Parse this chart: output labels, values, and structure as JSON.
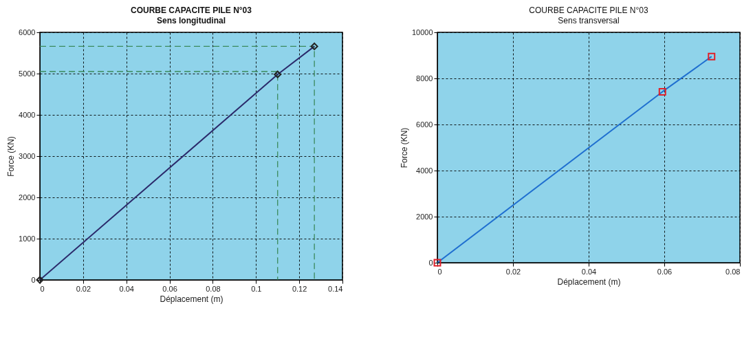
{
  "chart_data": [
    {
      "type": "line",
      "title": "COURBE CAPACITE PILE N°03",
      "subtitle": "Sens longitudinal",
      "xlabel": "Déplacement (m)",
      "ylabel": "Force (KN)",
      "xlim": [
        0,
        0.14
      ],
      "xticks": [
        0,
        0.02,
        0.04,
        0.06,
        0.08,
        0.1,
        0.12,
        0.14
      ],
      "ylim": [
        0,
        6000
      ],
      "yticks": [
        0,
        1000,
        2000,
        3000,
        4000,
        5000,
        6000
      ],
      "grid": true,
      "series": [
        {
          "color": "#3b8a5c",
          "line_style": "dashed",
          "marker": "none",
          "x": [
            0,
            0.127,
            0.127
          ],
          "values": [
            5660,
            5660,
            0
          ]
        },
        {
          "color": "#3b8a5c",
          "line_style": "dashed",
          "marker": "none",
          "x": [
            0,
            0.11,
            0.11
          ],
          "values": [
            5050,
            5050,
            0
          ]
        },
        {
          "color": "#2b2a6b",
          "line_style": "solid",
          "marker": "none",
          "x": [
            0,
            0.11,
            0.127
          ],
          "values": [
            0,
            4980,
            5660
          ]
        },
        {
          "type": "scatter",
          "color": "#222222",
          "marker": "diamond",
          "x": [
            0,
            0.11,
            0.127
          ],
          "values": [
            0,
            4980,
            5660
          ]
        }
      ]
    },
    {
      "type": "line",
      "title": "COURBE CAPACITE PILE N°03",
      "subtitle": "Sens transversal",
      "xlabel": "Déplacement (m)",
      "ylabel": "Force (KN)",
      "xlim": [
        0,
        0.08
      ],
      "xticks": [
        0,
        0.02,
        0.04,
        0.06,
        0.08
      ],
      "ylim": [
        0,
        10000
      ],
      "yticks": [
        0,
        2000,
        4000,
        6000,
        8000,
        10000
      ],
      "grid": true,
      "series": [
        {
          "color": "#1f6fd0",
          "line_style": "solid",
          "marker": "none",
          "x": [
            0,
            0.0595,
            0.0725
          ],
          "values": [
            0,
            7420,
            8950
          ]
        },
        {
          "type": "scatter",
          "color": "#e0202a",
          "marker": "square",
          "x": [
            0,
            0.0595,
            0.0725
          ],
          "values": [
            0,
            7420,
            8950
          ]
        }
      ]
    }
  ]
}
